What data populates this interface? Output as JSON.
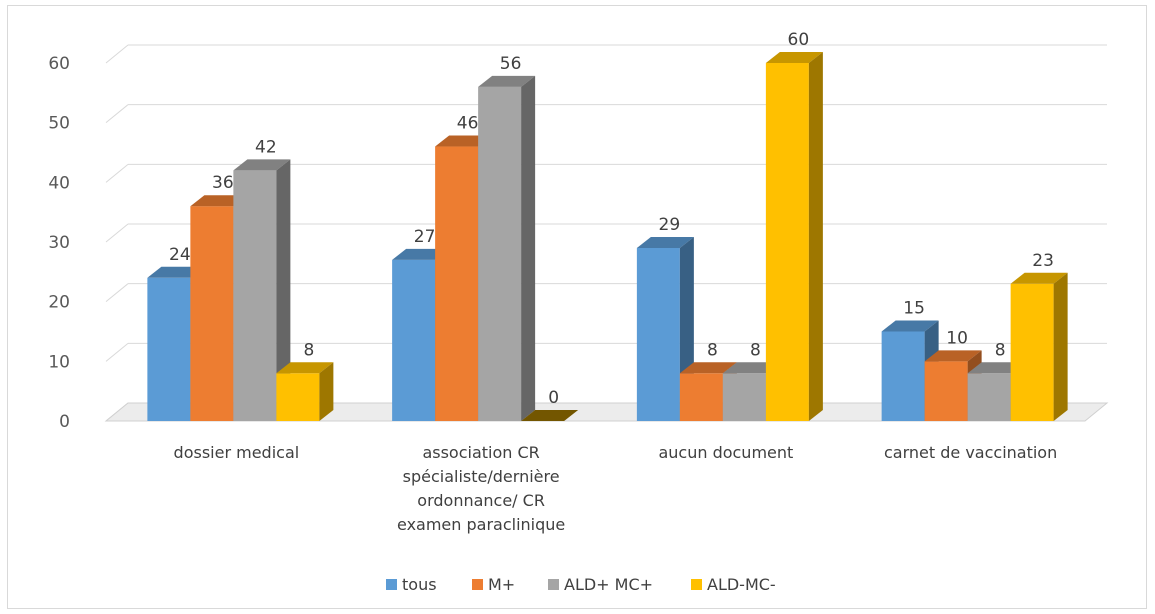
{
  "chart_data": {
    "type": "bar",
    "categories": [
      [
        "dossier medical"
      ],
      [
        "association CR",
        "spécialiste/dernière",
        "ordonnance/ CR",
        "examen paraclinique"
      ],
      [
        "aucun document"
      ],
      [
        "carnet de vaccination"
      ]
    ],
    "series": [
      {
        "name": "tous",
        "values": [
          24,
          27,
          29,
          15
        ],
        "color": "#5b9bd5"
      },
      {
        "name": "M+",
        "values": [
          36,
          46,
          8,
          10
        ],
        "color": "#ed7d31"
      },
      {
        "name": "ALD+ MC+",
        "values": [
          42,
          56,
          8,
          8
        ],
        "color": "#a5a5a5"
      },
      {
        "name": "ALD-MC-",
        "values": [
          8,
          0,
          60,
          23
        ],
        "color": "#ffc000"
      }
    ],
    "ylim": [
      0,
      60
    ],
    "yticks": [
      0,
      10,
      20,
      30,
      40,
      50,
      60
    ],
    "grid": true,
    "legend": "bottom",
    "style": "3d-clustered-column",
    "title": "",
    "xlabel": "",
    "ylabel": ""
  }
}
